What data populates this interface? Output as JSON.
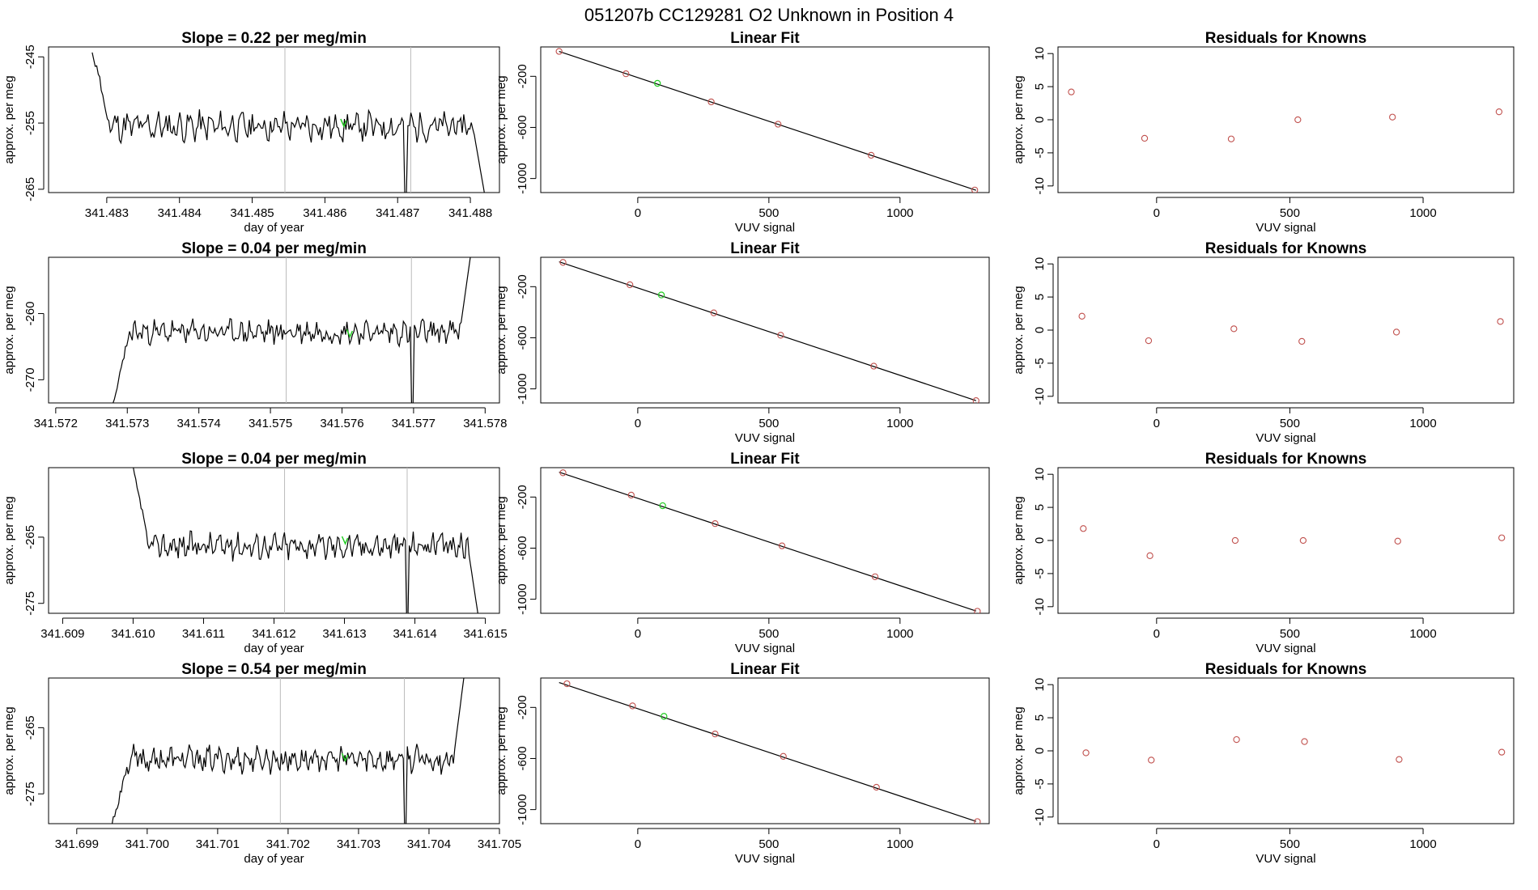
{
  "figure": {
    "title": "051207b      CC129281    O2 Unknown in Position  4"
  },
  "colors": {
    "series_line": "#000000",
    "marker_known": "#c0504d",
    "marker_unknown": "#22cc22",
    "vertical_marker": "#bbbbbb",
    "frame": "#000000"
  },
  "chart_data": [
    {
      "type": "line",
      "row": 1,
      "panel": "timeseries",
      "title": "Slope =  0.22  per meg/min",
      "xlabel": "day of year",
      "ylabel": "approx. per meg",
      "xlim": [
        341.4822,
        341.4884
      ],
      "ylim": [
        -265.5,
        -243.5
      ],
      "xticks": [
        341.483,
        341.484,
        341.485,
        341.486,
        341.487,
        341.488
      ],
      "xtick_labels": [
        "341.483",
        "341.484",
        "341.485",
        "341.486",
        "341.487",
        "341.488"
      ],
      "yticks": [
        -245,
        -255,
        -265
      ],
      "ytick_labels": [
        "-245",
        "-255",
        "-265"
      ],
      "x_start": 341.4828,
      "x_end": 341.4882,
      "y_base": -255.5,
      "noise": 1.7,
      "seed": 11,
      "start_spike_y": -244,
      "end_drop_y": -266,
      "dip_x": 341.4871,
      "dip_y": -266,
      "vlines": [
        341.48545,
        341.48718
      ],
      "marker": {
        "x": 341.48625,
        "y": -255
      }
    },
    {
      "type": "scatter",
      "row": 1,
      "panel": "fit",
      "title": "Linear Fit",
      "xlabel": "VUV signal",
      "ylabel": "approx. per meg",
      "xlim": [
        -370,
        1340
      ],
      "ylim": [
        -1110,
        30
      ],
      "xticks": [
        0,
        500,
        1000
      ],
      "xtick_labels": [
        "0",
        "500",
        "1000"
      ],
      "yticks": [
        -200,
        -600,
        -1000
      ],
      "ytick_labels": [
        "-200",
        "-600",
        "-1000"
      ],
      "fit_line": {
        "x": [
          -300,
          1290
        ],
        "y": [
          -5,
          -1092
        ]
      },
      "points": [
        {
          "x": -300,
          "y": -5
        },
        {
          "x": -45,
          "y": -180
        },
        {
          "x": 280,
          "y": -400
        },
        {
          "x": 535,
          "y": -575
        },
        {
          "x": 890,
          "y": -818
        },
        {
          "x": 1285,
          "y": -1090
        }
      ],
      "unknown_point": {
        "x": 75,
        "y": -255
      }
    },
    {
      "type": "scatter",
      "row": 1,
      "panel": "residuals",
      "title": "Residuals for Knowns",
      "xlabel": "VUV signal",
      "ylabel": "approx. per meg",
      "xlim": [
        -370,
        1340
      ],
      "ylim": [
        -11,
        11
      ],
      "xticks": [
        0,
        500,
        1000
      ],
      "xtick_labels": [
        "0",
        "500",
        "1000"
      ],
      "yticks": [
        10,
        5,
        0,
        -5,
        -10
      ],
      "ytick_labels": [
        "10",
        "5",
        "0",
        "-5",
        "-10"
      ],
      "points": [
        {
          "x": -320,
          "y": 4.2
        },
        {
          "x": -45,
          "y": -2.8
        },
        {
          "x": 280,
          "y": -2.9
        },
        {
          "x": 530,
          "y": 0.0
        },
        {
          "x": 885,
          "y": 0.4
        },
        {
          "x": 1285,
          "y": 1.2
        }
      ]
    },
    {
      "type": "line",
      "row": 2,
      "panel": "timeseries",
      "title": "Slope =  0.04  per meg/min",
      "xlabel": "",
      "ylabel": "approx. per meg",
      "xlim": [
        341.5719,
        341.5782
      ],
      "ylim": [
        -273.5,
        -251.5
      ],
      "xticks": [
        341.572,
        341.573,
        341.574,
        341.575,
        341.576,
        341.577,
        341.578
      ],
      "xtick_labels": [
        "341.572",
        "341.573",
        "341.574",
        "341.575",
        "341.576",
        "341.577",
        "341.578"
      ],
      "yticks": [
        -260,
        -270
      ],
      "ytick_labels": [
        "-260",
        "-270"
      ],
      "x_start": 341.5728,
      "x_end": 341.5778,
      "y_base": -262.8,
      "noise": 1.4,
      "seed": 23,
      "start_spike_y": -274,
      "end_drop_y": -251,
      "dip_x": 341.57697,
      "dip_y": -274,
      "vlines": [
        341.57522,
        341.57697
      ],
      "marker": {
        "x": 341.5761,
        "y": -263
      }
    },
    {
      "type": "scatter",
      "row": 2,
      "panel": "fit",
      "title": "Linear Fit",
      "xlabel": "VUV signal",
      "ylabel": "approx. per meg",
      "xlim": [
        -370,
        1340
      ],
      "ylim": [
        -1110,
        30
      ],
      "xticks": [
        0,
        500,
        1000
      ],
      "xtick_labels": [
        "0",
        "500",
        "1000"
      ],
      "yticks": [
        -200,
        -600,
        -1000
      ],
      "ytick_labels": [
        "-200",
        "-600",
        "-1000"
      ],
      "fit_line": {
        "x": [
          -300,
          1290
        ],
        "y": [
          -5,
          -1092
        ]
      },
      "points": [
        {
          "x": -285,
          "y": -10
        },
        {
          "x": -30,
          "y": -185
        },
        {
          "x": 290,
          "y": -405
        },
        {
          "x": 545,
          "y": -580
        },
        {
          "x": 900,
          "y": -822
        },
        {
          "x": 1290,
          "y": -1092
        }
      ],
      "unknown_point": {
        "x": 90,
        "y": -265
      }
    },
    {
      "type": "scatter",
      "row": 2,
      "panel": "residuals",
      "title": "Residuals for Knowns",
      "xlabel": "VUV signal",
      "ylabel": "approx. per meg",
      "xlim": [
        -370,
        1340
      ],
      "ylim": [
        -11,
        11
      ],
      "xticks": [
        0,
        500,
        1000
      ],
      "xtick_labels": [
        "0",
        "500",
        "1000"
      ],
      "yticks": [
        10,
        5,
        0,
        -5,
        -10
      ],
      "ytick_labels": [
        "10",
        "5",
        "0",
        "-5",
        "-10"
      ],
      "points": [
        {
          "x": -280,
          "y": 2.1
        },
        {
          "x": -30,
          "y": -1.6
        },
        {
          "x": 290,
          "y": 0.2
        },
        {
          "x": 545,
          "y": -1.7
        },
        {
          "x": 900,
          "y": -0.3
        },
        {
          "x": 1290,
          "y": 1.3
        }
      ]
    },
    {
      "type": "line",
      "row": 3,
      "panel": "timeseries",
      "title": "Slope =  0.04  per meg/min",
      "xlabel": "day of year",
      "ylabel": "approx. per meg",
      "xlim": [
        341.6088,
        341.6152
      ],
      "ylim": [
        -276.5,
        -254.5
      ],
      "xticks": [
        341.609,
        341.61,
        341.611,
        341.612,
        341.613,
        341.614,
        341.615
      ],
      "xtick_labels": [
        "341.609",
        "341.610",
        "341.611",
        "341.612",
        "341.613",
        "341.614",
        "341.615"
      ],
      "yticks": [
        -265,
        -275
      ],
      "ytick_labels": [
        "-265",
        "-275"
      ],
      "x_start": 341.61,
      "x_end": 341.6149,
      "y_base": -266.3,
      "noise": 1.5,
      "seed": 37,
      "start_spike_y": -255,
      "end_drop_y": -277,
      "dip_x": 341.61389,
      "dip_y": -277,
      "vlines": [
        341.61215,
        341.61389
      ],
      "marker": {
        "x": 341.613,
        "y": -265.5
      }
    },
    {
      "type": "scatter",
      "row": 3,
      "panel": "fit",
      "title": "Linear Fit",
      "xlabel": "VUV signal",
      "ylabel": "approx. per meg",
      "xlim": [
        -370,
        1340
      ],
      "ylim": [
        -1110,
        30
      ],
      "xticks": [
        0,
        500,
        1000
      ],
      "xtick_labels": [
        "0",
        "500",
        "1000"
      ],
      "yticks": [
        -200,
        -600,
        -1000
      ],
      "ytick_labels": [
        "-200",
        "-600",
        "-1000"
      ],
      "fit_line": {
        "x": [
          -300,
          1290
        ],
        "y": [
          -5,
          -1092
        ]
      },
      "points": [
        {
          "x": -285,
          "y": -10
        },
        {
          "x": -25,
          "y": -185
        },
        {
          "x": 295,
          "y": -408
        },
        {
          "x": 550,
          "y": -582
        },
        {
          "x": 905,
          "y": -824
        },
        {
          "x": 1295,
          "y": -1094
        }
      ],
      "unknown_point": {
        "x": 95,
        "y": -268
      }
    },
    {
      "type": "scatter",
      "row": 3,
      "panel": "residuals",
      "title": "Residuals for Knowns",
      "xlabel": "VUV signal",
      "ylabel": "approx. per meg",
      "xlim": [
        -370,
        1340
      ],
      "ylim": [
        -11,
        11
      ],
      "xticks": [
        0,
        500,
        1000
      ],
      "xtick_labels": [
        "0",
        "500",
        "1000"
      ],
      "yticks": [
        10,
        5,
        0,
        -5,
        -10
      ],
      "ytick_labels": [
        "10",
        "5",
        "0",
        "-5",
        "-10"
      ],
      "points": [
        {
          "x": -275,
          "y": 1.8
        },
        {
          "x": -25,
          "y": -2.3
        },
        {
          "x": 295,
          "y": 0.0
        },
        {
          "x": 550,
          "y": 0.0
        },
        {
          "x": 905,
          "y": -0.1
        },
        {
          "x": 1295,
          "y": 0.4
        }
      ]
    },
    {
      "type": "line",
      "row": 4,
      "panel": "timeseries",
      "title": "Slope =  0.54  per meg/min",
      "xlabel": "day of year",
      "ylabel": "approx. per meg",
      "xlim": [
        341.6986,
        341.705
      ],
      "ylim": [
        -279.5,
        -257.5
      ],
      "xticks": [
        341.699,
        341.7,
        341.701,
        341.702,
        341.703,
        341.704,
        341.705
      ],
      "xtick_labels": [
        "341.699",
        "341.700",
        "341.701",
        "341.702",
        "341.703",
        "341.704",
        "341.705"
      ],
      "yticks": [
        -265,
        -275
      ],
      "ytick_labels": [
        "-265",
        "-275"
      ],
      "x_start": 341.6995,
      "x_end": 341.7045,
      "y_base": -269.8,
      "noise": 1.5,
      "seed": 53,
      "start_spike_y": -280,
      "end_drop_y": -257,
      "dip_x": 341.70365,
      "dip_y": -280,
      "vlines": [
        341.70189,
        341.70365
      ],
      "marker": {
        "x": 341.7028,
        "y": -269.5
      }
    },
    {
      "type": "scatter",
      "row": 4,
      "panel": "fit",
      "title": "Linear Fit",
      "xlabel": "VUV signal",
      "ylabel": "approx. per meg",
      "xlim": [
        -370,
        1340
      ],
      "ylim": [
        -1110,
        30
      ],
      "xticks": [
        0,
        500,
        1000
      ],
      "xtick_labels": [
        "0",
        "500",
        "1000"
      ],
      "yticks": [
        -200,
        -600,
        -1000
      ],
      "ytick_labels": [
        "-200",
        "-600",
        "-1000"
      ],
      "fit_line": {
        "x": [
          -300,
          1290
        ],
        "y": [
          -5,
          -1092
        ]
      },
      "points": [
        {
          "x": -270,
          "y": -15
        },
        {
          "x": -20,
          "y": -188
        },
        {
          "x": 295,
          "y": -408
        },
        {
          "x": 555,
          "y": -583
        },
        {
          "x": 910,
          "y": -825
        },
        {
          "x": 1295,
          "y": -1094
        }
      ],
      "unknown_point": {
        "x": 100,
        "y": -270
      }
    },
    {
      "type": "scatter",
      "row": 4,
      "panel": "residuals",
      "title": "Residuals for Knowns",
      "xlabel": "VUV signal",
      "ylabel": "approx. per meg",
      "xlim": [
        -370,
        1340
      ],
      "ylim": [
        -11,
        11
      ],
      "xticks": [
        0,
        500,
        1000
      ],
      "xtick_labels": [
        "0",
        "500",
        "1000"
      ],
      "yticks": [
        10,
        5,
        0,
        -5,
        -10
      ],
      "ytick_labels": [
        "10",
        "5",
        "0",
        "-5",
        "-10"
      ],
      "points": [
        {
          "x": -265,
          "y": -0.3
        },
        {
          "x": -20,
          "y": -1.4
        },
        {
          "x": 300,
          "y": 1.7
        },
        {
          "x": 555,
          "y": 1.4
        },
        {
          "x": 910,
          "y": -1.3
        },
        {
          "x": 1295,
          "y": -0.2
        }
      ]
    }
  ]
}
